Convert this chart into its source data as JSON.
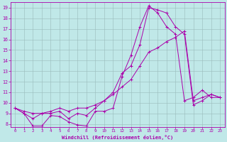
{
  "xlabel": "Windchill (Refroidissement éolien,°C)",
  "background_color": "#c0e8e8",
  "line_color": "#aa00aa",
  "grid_color": "#99bbbb",
  "xlim": [
    -0.5,
    23.5
  ],
  "ylim": [
    7.7,
    19.5
  ],
  "xticks": [
    0,
    1,
    2,
    3,
    4,
    5,
    6,
    7,
    8,
    9,
    10,
    11,
    12,
    13,
    14,
    15,
    16,
    17,
    18,
    19,
    20,
    21,
    22,
    23
  ],
  "yticks": [
    8,
    9,
    10,
    11,
    12,
    13,
    14,
    15,
    16,
    17,
    18,
    19
  ],
  "series1_x": [
    0,
    1,
    2,
    3,
    4,
    5,
    6,
    7,
    8,
    9,
    10,
    11,
    12,
    13,
    14,
    15,
    16,
    17,
    18,
    19,
    20,
    21,
    22,
    23
  ],
  "series1_y": [
    9.5,
    9.0,
    7.8,
    7.8,
    8.8,
    8.7,
    8.2,
    7.9,
    7.8,
    9.2,
    9.2,
    9.5,
    12.5,
    14.5,
    17.2,
    19.2,
    18.5,
    17.2,
    16.5,
    10.2,
    10.5,
    11.2,
    10.5,
    10.5
  ],
  "series2_x": [
    0,
    1,
    2,
    3,
    4,
    5,
    6,
    7,
    8,
    9,
    10,
    11,
    12,
    13,
    14,
    15,
    16,
    17,
    18,
    19,
    20,
    21,
    22,
    23
  ],
  "series2_y": [
    9.5,
    9.0,
    8.5,
    9.0,
    9.0,
    9.2,
    8.5,
    9.0,
    8.8,
    9.5,
    10.2,
    11.0,
    12.8,
    13.5,
    15.5,
    19.0,
    18.8,
    18.5,
    17.2,
    16.5,
    9.8,
    10.2,
    10.8,
    10.5
  ],
  "series3_x": [
    0,
    1,
    2,
    3,
    4,
    5,
    6,
    7,
    8,
    9,
    10,
    11,
    12,
    13,
    14,
    15,
    16,
    17,
    18,
    19,
    20,
    21,
    22,
    23
  ],
  "series3_y": [
    9.5,
    9.2,
    9.0,
    9.0,
    9.2,
    9.5,
    9.2,
    9.5,
    9.5,
    9.8,
    10.2,
    10.8,
    11.5,
    12.2,
    13.5,
    14.8,
    15.2,
    15.8,
    16.2,
    16.8,
    10.2,
    10.5,
    10.8,
    10.5
  ]
}
